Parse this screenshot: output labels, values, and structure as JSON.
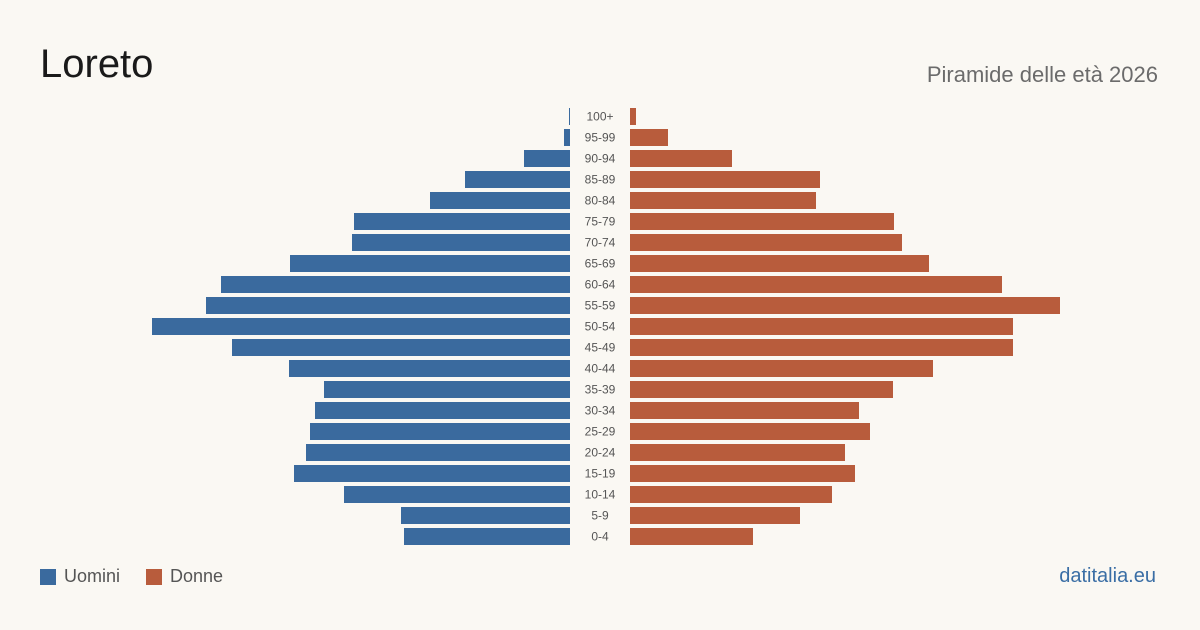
{
  "title": "Loreto",
  "subtitle": "Piramide delle età 2026",
  "source": "datitalia.eu",
  "colors": {
    "men": "#3a6a9e",
    "women": "#b85c3c"
  },
  "legend": {
    "men_label": "Uomini",
    "women_label": "Donne"
  },
  "chart_data": {
    "type": "bar",
    "orientation": "horizontal-pyramid",
    "categories": [
      "100+",
      "95-99",
      "90-94",
      "85-89",
      "80-84",
      "75-79",
      "70-74",
      "65-69",
      "60-64",
      "55-59",
      "50-54",
      "45-49",
      "40-44",
      "35-39",
      "30-34",
      "25-29",
      "20-24",
      "15-19",
      "10-14",
      "5-9",
      "0-4"
    ],
    "series": [
      {
        "name": "Uomini",
        "values": [
          1,
          6,
          46,
          105,
          140,
          216,
          218,
          280,
          349,
          364,
          418,
          338,
          281,
          246,
          255,
          260,
          264,
          276,
          226,
          169,
          166
        ]
      },
      {
        "name": "Donne",
        "values": [
          6,
          38,
          102,
          190,
          186,
          264,
          272,
          299,
          372,
          430,
          383,
          383,
          303,
          263,
          229,
          240,
          215,
          225,
          202,
          170,
          123
        ]
      }
    ]
  }
}
